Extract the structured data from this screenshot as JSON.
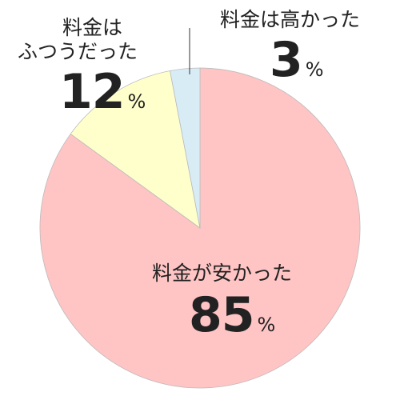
{
  "chart_data": {
    "type": "pie",
    "start_angle_deg": 0,
    "direction": "clockwise",
    "slices": [
      {
        "label_lines": [
          "料金が安かった"
        ],
        "value": 85,
        "unit": "%",
        "color": "#ffc4c4",
        "label_color": "#ffffff"
      },
      {
        "label_lines": [
          "料金は",
          "ふつうだった"
        ],
        "value": 12,
        "unit": "%",
        "color": "#ffffcc",
        "label_color": "#222222"
      },
      {
        "label_lines": [
          "料金は高かった"
        ],
        "value": 3,
        "unit": "%",
        "color": "#d8ecf6",
        "label_color": "#222222"
      }
    ],
    "stroke_color": "#bbbbbb",
    "leader_line_color": "#333333"
  }
}
